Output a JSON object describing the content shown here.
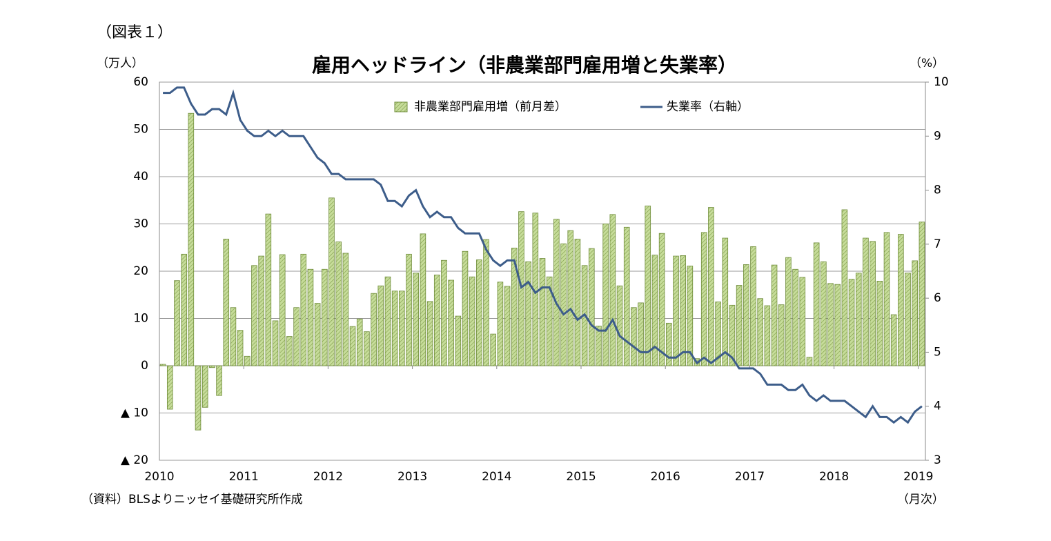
{
  "figure_label": "（図表１）",
  "source": "（資料）BLSよりニッセイ基礎研究所作成",
  "chart_data": {
    "type": "bar_line",
    "title": "雇用ヘッドライン（非農業部門雇用増と失業率）",
    "y_label": "（万人）",
    "y2_label": "（%）",
    "x_label": "（月次）",
    "categories": [
      "2010",
      null,
      null,
      null,
      null,
      null,
      null,
      null,
      null,
      null,
      null,
      null,
      "2011",
      null,
      null,
      null,
      null,
      null,
      null,
      null,
      null,
      null,
      null,
      null,
      "2012",
      null,
      null,
      null,
      null,
      null,
      null,
      null,
      null,
      null,
      null,
      null,
      "2013",
      null,
      null,
      null,
      null,
      null,
      null,
      null,
      null,
      null,
      null,
      null,
      "2014",
      null,
      null,
      null,
      null,
      null,
      null,
      null,
      null,
      null,
      null,
      null,
      "2015",
      null,
      null,
      null,
      null,
      null,
      null,
      null,
      null,
      null,
      null,
      null,
      "2016",
      null,
      null,
      null,
      null,
      null,
      null,
      null,
      null,
      null,
      null,
      null,
      "2017",
      null,
      null,
      null,
      null,
      null,
      null,
      null,
      null,
      null,
      null,
      null,
      "2018",
      null,
      null,
      null,
      null,
      null,
      null,
      null,
      null,
      null,
      null,
      null,
      "2019"
    ],
    "series": [
      {
        "name": "非農業部門雇用増（前月差）",
        "color": "#c6dc9a",
        "type": "bar",
        "values": [
          0.3,
          -9.2,
          18.0,
          23.6,
          53.4,
          -13.6,
          -8.8,
          -0.4,
          -6.3,
          26.8,
          12.3,
          7.5,
          2.0,
          21.2,
          23.2,
          32.1,
          9.5,
          23.5,
          6.2,
          12.3,
          23.6,
          20.4,
          13.2,
          20.4,
          35.5,
          26.2,
          23.8,
          8.3,
          9.9,
          7.2,
          15.3,
          16.9,
          18.8,
          15.8,
          15.8,
          23.6,
          19.6,
          27.9,
          13.6,
          19.2,
          22.3,
          18.1,
          10.5,
          24.2,
          18.8,
          22.4,
          26.7,
          6.7,
          17.7,
          16.8,
          24.9,
          32.6,
          22.0,
          32.3,
          22.7,
          18.8,
          31.0,
          25.8,
          28.6,
          26.8,
          21.2,
          24.8,
          8.4,
          30.0,
          32.0,
          16.9,
          29.3,
          12.3,
          13.3,
          33.8,
          23.4,
          28.0,
          9.0,
          23.2,
          23.3,
          21.1,
          1.5,
          28.2,
          33.5,
          13.5,
          27.0,
          12.8,
          17.0,
          21.4,
          25.2,
          14.2,
          12.7,
          21.3,
          12.9,
          22.9,
          20.4,
          18.7,
          1.8,
          26.0,
          22.0,
          17.4,
          17.2,
          33.0,
          18.3,
          19.6,
          27.0,
          26.3,
          17.9,
          28.2,
          10.8,
          27.8,
          19.6,
          22.2,
          30.4
        ]
      },
      {
        "name": "失業率（右軸）",
        "color": "#3d5d8a",
        "type": "line",
        "axis": "y2",
        "values": [
          9.8,
          9.8,
          9.9,
          9.9,
          9.6,
          9.4,
          9.4,
          9.5,
          9.5,
          9.4,
          9.8,
          9.3,
          9.1,
          9.0,
          9.0,
          9.1,
          9.0,
          9.1,
          9.0,
          9.0,
          9.0,
          8.8,
          8.6,
          8.5,
          8.3,
          8.3,
          8.2,
          8.2,
          8.2,
          8.2,
          8.2,
          8.1,
          7.8,
          7.8,
          7.7,
          7.9,
          8.0,
          7.7,
          7.5,
          7.6,
          7.5,
          7.5,
          7.3,
          7.2,
          7.2,
          7.2,
          6.9,
          6.7,
          6.6,
          6.7,
          6.7,
          6.2,
          6.3,
          6.1,
          6.2,
          6.2,
          5.9,
          5.7,
          5.8,
          5.6,
          5.7,
          5.5,
          5.4,
          5.4,
          5.6,
          5.3,
          5.2,
          5.1,
          5.0,
          5.0,
          5.1,
          5.0,
          4.9,
          4.9,
          5.0,
          5.0,
          4.8,
          4.9,
          4.8,
          4.9,
          5.0,
          4.9,
          4.7,
          4.7,
          4.7,
          4.6,
          4.4,
          4.4,
          4.4,
          4.3,
          4.3,
          4.4,
          4.2,
          4.1,
          4.2,
          4.1,
          4.1,
          4.1,
          4.0,
          3.9,
          3.8,
          4.0,
          3.8,
          3.8,
          3.7,
          3.8,
          3.7,
          3.9,
          4.0
        ]
      }
    ],
    "ylim": [
      -20,
      60
    ],
    "yticks": [
      {
        "value": -20,
        "label": "▲ 20"
      },
      {
        "value": -10,
        "label": "▲ 10"
      },
      0,
      10,
      20,
      30,
      40,
      50,
      60
    ],
    "y2lim": [
      3,
      10
    ],
    "y2ticks": [
      3,
      4,
      5,
      6,
      7,
      8,
      9,
      10
    ],
    "grid": true,
    "legend": "top"
  }
}
